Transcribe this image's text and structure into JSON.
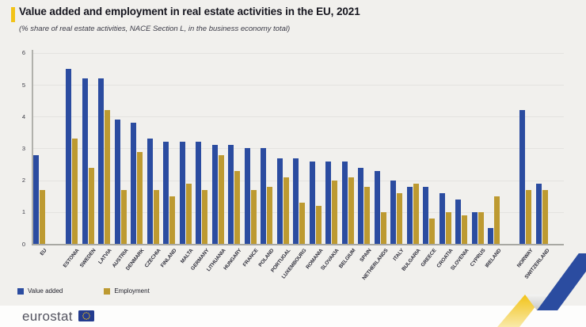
{
  "header": {
    "title": "Value added and employment in real estate activities in the EU, 2021",
    "subtitle": "(% share of real estate activities, NACE Section L, in the business economy total)",
    "accent_color": "#f2c318"
  },
  "chart_data": {
    "type": "bar",
    "title": "Value added and employment in real estate activities in the EU, 2021",
    "subtitle": "(% share of real estate activities, NACE Section L, in the business economy total)",
    "categories": [
      "EU",
      "ESTONIA",
      "SWEDEN",
      "LATVIA",
      "AUSTRIA",
      "DENMARK",
      "CZECHIA",
      "FINLAND",
      "MALTA",
      "GERMANY",
      "LITHUANIA",
      "HUNGARY",
      "FRANCE",
      "POLAND",
      "PORTUGAL",
      "LUXEMBOURG",
      "ROMANIA",
      "SLOVAKIA",
      "BELGIUM",
      "SPAIN",
      "NETHERLANDS",
      "ITALY",
      "BULGARIA",
      "GREECE",
      "CROATIA",
      "SLOVENIA",
      "CYPRUS",
      "IRELAND",
      "NORWAY",
      "SWITZERLAND"
    ],
    "series": [
      {
        "name": "Value added",
        "color": "#2b4ca0",
        "values": [
          2.8,
          5.5,
          5.2,
          5.2,
          3.9,
          3.8,
          3.3,
          3.2,
          3.2,
          3.2,
          3.1,
          3.1,
          3.0,
          3.0,
          2.7,
          2.7,
          2.6,
          2.6,
          2.6,
          2.4,
          2.3,
          2.0,
          1.8,
          1.8,
          1.6,
          1.4,
          1.0,
          0.5,
          4.2,
          1.9
        ]
      },
      {
        "name": "Employment",
        "color": "#bd9a31",
        "values": [
          1.7,
          3.3,
          2.4,
          4.2,
          1.7,
          2.9,
          1.7,
          1.5,
          1.9,
          1.7,
          2.8,
          2.3,
          1.7,
          1.8,
          2.1,
          1.3,
          1.2,
          2.0,
          2.1,
          1.8,
          1.0,
          1.6,
          1.9,
          0.8,
          1.0,
          0.9,
          1.0,
          1.5,
          1.7,
          1.7
        ]
      }
    ],
    "ylim": [
      0,
      6
    ],
    "yticks": [
      0,
      1,
      2,
      3,
      4,
      5,
      6
    ],
    "grid": true,
    "legend_position": "bottom-left",
    "group_gaps_after": [
      "EU",
      "IRELAND"
    ]
  },
  "footer": {
    "brand": "eurostat"
  },
  "icons": {
    "eu_flag": "eu-flag-logo",
    "arrow": "trend-arrow-decoration"
  }
}
